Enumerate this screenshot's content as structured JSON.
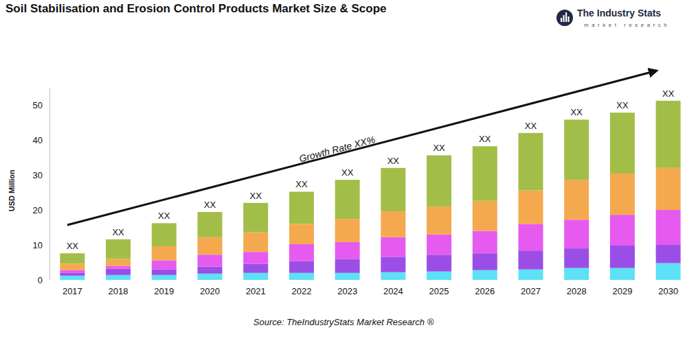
{
  "chart_data": {
    "type": "bar",
    "stacked": true,
    "grid": false,
    "title": "Soil Stabilisation and Erosion Control Products Market Size & Scope",
    "y_label": "USD Million",
    "source": "Source: TheIndustryStats Market Research ®",
    "annotation": "Growth Rate XX%",
    "logo": {
      "name": "The Industry Stats",
      "tagline": "market research"
    },
    "categories": [
      "2017",
      "2018",
      "2019",
      "2020",
      "2021",
      "2022",
      "2023",
      "2024",
      "2025",
      "2026",
      "2027",
      "2028",
      "2029",
      "2030"
    ],
    "bar_labels": [
      "XX",
      "XX",
      "XX",
      "XX",
      "XX",
      "XX",
      "XX",
      "XX",
      "XX",
      "XX",
      "XX",
      "XX",
      "XX",
      "XX"
    ],
    "series": [
      {
        "color": "#5ce1f7",
        "values": [
          1.2,
          1.4,
          1.4,
          1.8,
          2,
          2,
          2,
          2.2,
          2.4,
          2.8,
          3,
          3.4,
          3.4,
          4.8
        ]
      },
      {
        "color": "#9b4ee6",
        "values": [
          0.8,
          1.8,
          1.6,
          2,
          2.6,
          3.4,
          4,
          4.4,
          4.8,
          4.8,
          5.4,
          5.6,
          6.4,
          5.2
        ]
      },
      {
        "color": "#e65af0",
        "values": [
          0.8,
          0.8,
          2.6,
          3.4,
          3.4,
          4.8,
          4.8,
          5.6,
          5.8,
          6.4,
          7.6,
          8.2,
          8.8,
          10
        ]
      },
      {
        "color": "#f4a94e",
        "values": [
          1.8,
          2,
          4,
          5,
          5.6,
          5.8,
          6.6,
          7.4,
          8,
          8.6,
          9.6,
          11.4,
          11.8,
          12
        ]
      },
      {
        "color": "#a3be48",
        "values": [
          3,
          5.6,
          6.6,
          7.2,
          8.4,
          9.2,
          11.2,
          12.4,
          14.6,
          15.6,
          16.4,
          17.2,
          17.4,
          19.2
        ]
      }
    ],
    "ylim": [
      0,
      55
    ],
    "yticks": [
      0,
      10,
      20,
      30,
      40,
      50
    ]
  }
}
